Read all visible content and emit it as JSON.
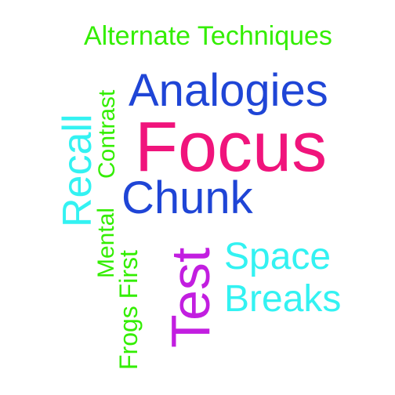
{
  "words": {
    "alternate_techniques": {
      "text": "Alternate Techniques",
      "color": "#33ee00"
    },
    "analogies": {
      "text": "Analogies",
      "color": "#1f45d6"
    },
    "focus": {
      "text": "Focus",
      "color": "#f0147c"
    },
    "chunk": {
      "text": "Chunk",
      "color": "#1f45d6"
    },
    "space": {
      "text": "Space",
      "color": "#33f2f2"
    },
    "breaks": {
      "text": "Breaks",
      "color": "#33f2f2"
    },
    "contrast": {
      "text": "Contrast",
      "color": "#33ee00"
    },
    "recall": {
      "text": "Recall",
      "color": "#33f2f2"
    },
    "mental": {
      "text": "Mental",
      "color": "#33ee00"
    },
    "frogs_first": {
      "text": "Frogs First",
      "color": "#33ee00"
    },
    "test": {
      "text": "Test",
      "color": "#c21ee0"
    }
  }
}
